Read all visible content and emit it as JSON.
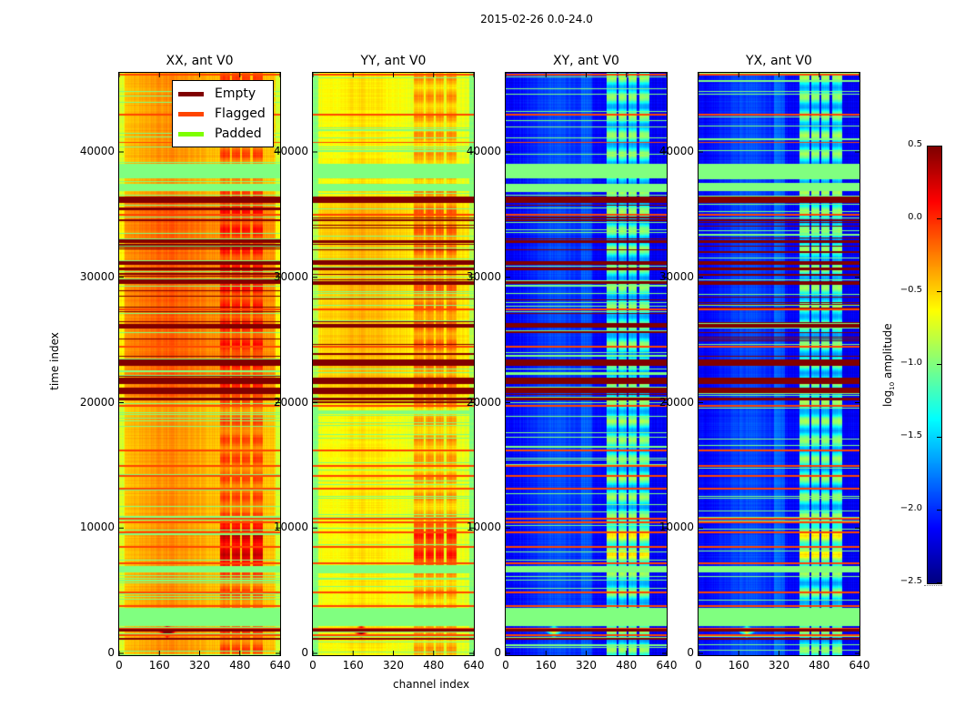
{
  "chart_data": {
    "type": "heatmap",
    "title": "2015-02-26 0.0-24.0",
    "xlabel": "channel index",
    "ylabel": "time index",
    "xlim": [
      0,
      640
    ],
    "ylim": [
      0,
      46500
    ],
    "xticks": [
      0,
      160,
      320,
      480,
      640
    ],
    "yticks": [
      0,
      10000,
      20000,
      30000,
      40000
    ],
    "xtick_labels": [
      "0",
      "160",
      "320",
      "480",
      "640"
    ],
    "ytick_labels": [
      "0",
      "10000",
      "20000",
      "30000",
      "40000"
    ],
    "colormap": "jet",
    "colorbar": {
      "label_main": "log",
      "label_sub": "10",
      "label_rest": " amplitude",
      "range": [
        -2.5,
        0.5
      ],
      "ticks": [
        0.5,
        0.0,
        -0.5,
        -1.0,
        -1.5,
        -2.0,
        -2.5
      ],
      "tick_labels": [
        "0.5",
        "0.0",
        "−0.5",
        "−1.0",
        "−1.5",
        "−2.0",
        "−2.5"
      ]
    },
    "legend": {
      "placement": "upper-right of first panel",
      "entries": [
        {
          "label": "Empty",
          "color": "#800000"
        },
        {
          "label": "Flagged",
          "color": "#ff4500"
        },
        {
          "label": "Padded",
          "color": "#7fff00"
        }
      ]
    },
    "panels": [
      {
        "title": "XX, ant V0",
        "pol": "XX",
        "base_log_amp": -0.45,
        "rfi_log_amp": -0.05,
        "style": "parallel"
      },
      {
        "title": "YY, ant V0",
        "pol": "YY",
        "base_log_amp": -0.7,
        "rfi_log_amp": -0.3,
        "style": "parallel"
      },
      {
        "title": "XY, ant V0",
        "pol": "XY",
        "base_log_amp": -2.15,
        "rfi_log_amp": -0.9,
        "style": "cross"
      },
      {
        "title": "YX, ant V0",
        "pol": "YX",
        "base_log_amp": -2.15,
        "rfi_log_amp": -0.9,
        "style": "cross"
      }
    ],
    "rfi_channel_bands": [
      [
        400,
        440
      ],
      [
        445,
        480
      ],
      [
        485,
        520
      ],
      [
        530,
        570
      ]
    ],
    "padded_time_ranges": [
      [
        2200,
        3700
      ],
      [
        6500,
        7000
      ],
      [
        36900,
        37500
      ],
      [
        37900,
        39100
      ]
    ],
    "empty_time_ranges": [
      [
        36000,
        36500
      ],
      [
        34500,
        34700
      ],
      [
        32800,
        33000
      ],
      [
        31000,
        31300
      ],
      [
        30600,
        30800
      ],
      [
        29500,
        29700
      ],
      [
        26000,
        26300
      ],
      [
        23000,
        23500
      ],
      [
        21500,
        22000
      ],
      [
        20800,
        21200
      ],
      [
        20200,
        20400
      ],
      [
        1800,
        2000
      ],
      [
        1100,
        1300
      ]
    ],
    "flagged_time_rows": [
      1500,
      2000,
      3800,
      4900,
      7200,
      8500,
      9700,
      10500,
      10800,
      13200,
      14200,
      15000,
      16200,
      19800,
      24500,
      27500,
      35000,
      38600,
      40800,
      43000,
      46200
    ]
  }
}
